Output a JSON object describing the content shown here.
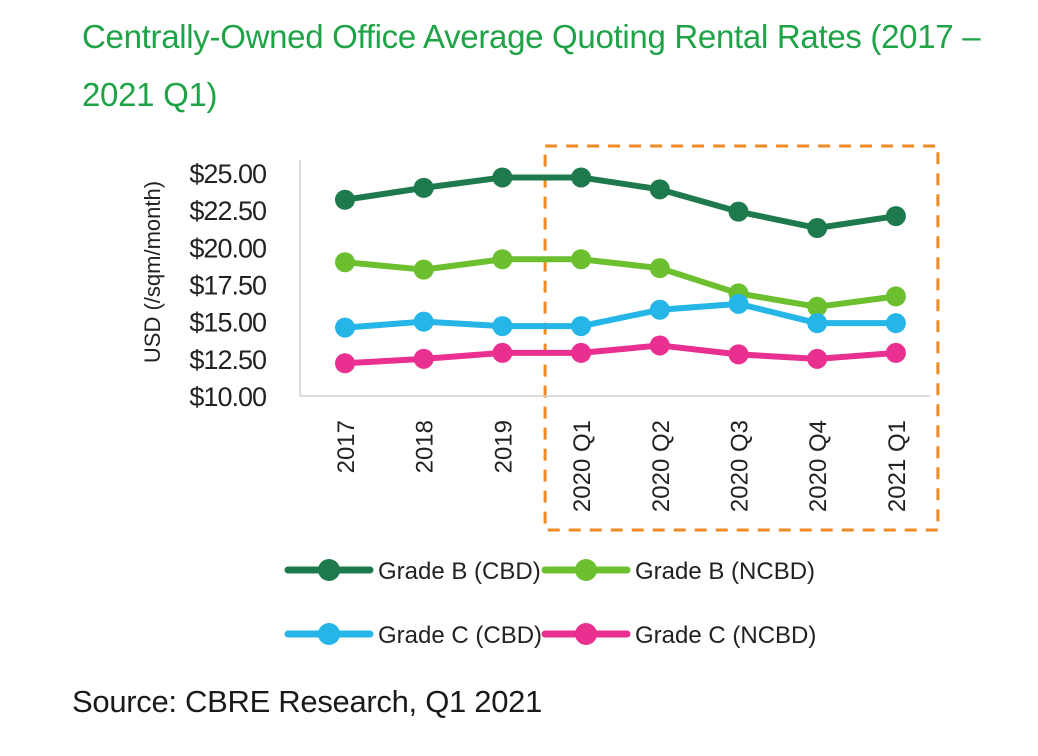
{
  "title_lines": [
    "Centrally-Owned Office Average Quoting Rental Rates (2017 –",
    "2021 Q1)"
  ],
  "source": "Source: CBRE Research, Q1 2021",
  "colors": {
    "title": "#1fa347",
    "highlight_box": "#f08a24",
    "axis_text": "#222222"
  },
  "chart_data": {
    "type": "line",
    "title": "Centrally-Owned Office Average Quoting Rental Rates (2017 – 2021 Q1)",
    "xlabel": "",
    "ylabel": "USD (/sqm/month)",
    "categories": [
      "2017",
      "2018",
      "2019",
      "2020 Q1",
      "2020 Q2",
      "2020 Q3",
      "2020 Q4",
      "2021 Q1"
    ],
    "ylim": [
      10,
      25
    ],
    "yticks": [
      "$25.00",
      "$22.50",
      "$20.00",
      "$17.50",
      "$15.00",
      "$12.50",
      "$10.00"
    ],
    "ytick_values": [
      25,
      22.5,
      20,
      17.5,
      15,
      12.5,
      10
    ],
    "grid": false,
    "legend_position": "bottom",
    "highlight_range": [
      "2020 Q1",
      "2021 Q1"
    ],
    "series": [
      {
        "name": "Grade B (CBD)",
        "color": "#1e7a4c",
        "values": [
          23.2,
          24.0,
          24.7,
          24.7,
          23.9,
          22.4,
          21.3,
          22.1
        ]
      },
      {
        "name": "Grade B (NCBD)",
        "color": "#6cbf2e",
        "values": [
          19.0,
          18.5,
          19.2,
          19.2,
          18.6,
          16.9,
          16.0,
          16.7
        ]
      },
      {
        "name": "Grade C (CBD)",
        "color": "#25b5e6",
        "values": [
          14.6,
          15.0,
          14.7,
          14.7,
          15.8,
          16.2,
          14.9,
          14.9
        ]
      },
      {
        "name": "Grade C (NCBD)",
        "color": "#e92f8f",
        "values": [
          12.2,
          12.5,
          12.9,
          12.9,
          13.4,
          12.8,
          12.5,
          12.9
        ]
      }
    ]
  }
}
